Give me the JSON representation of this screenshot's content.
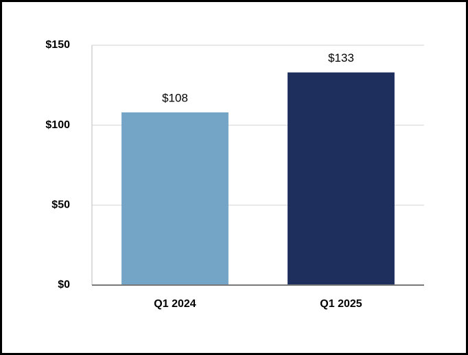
{
  "chart_data": {
    "type": "bar",
    "categories": [
      "Q1 2024",
      "Q1 2025"
    ],
    "values": [
      108,
      133
    ],
    "value_labels": [
      "$108",
      "$133"
    ],
    "colors": [
      "#75a5c6",
      "#1e2f5e"
    ],
    "ylim": [
      0,
      150
    ],
    "yticks": [
      {
        "value": 0,
        "label": "$0"
      },
      {
        "value": 50,
        "label": "$50"
      },
      {
        "value": 100,
        "label": "$100"
      },
      {
        "value": 150,
        "label": "$150"
      }
    ],
    "grid": true
  }
}
